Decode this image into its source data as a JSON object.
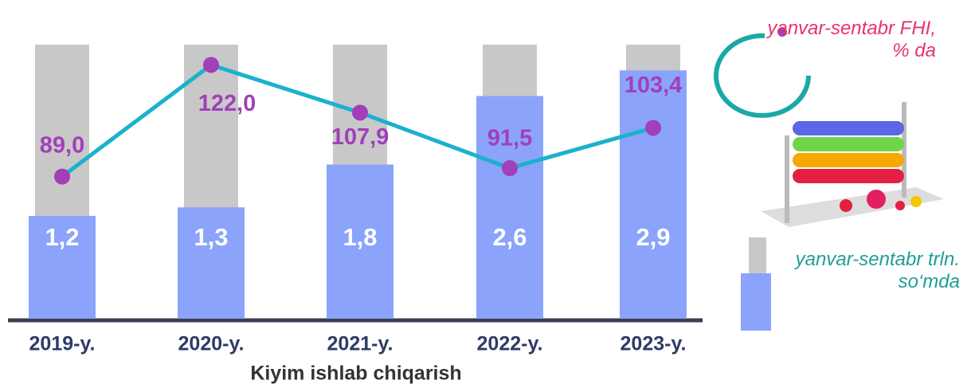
{
  "chart_data": {
    "type": "bar",
    "title": "Kiyim ishlab chiqarish",
    "categories": [
      "2019-y.",
      "2020-y.",
      "2021-y.",
      "2022-y.",
      "2023-y."
    ],
    "series": [
      {
        "name": "yanvar-sentabr trln. so‘mda",
        "type": "bar",
        "color": "#8ba3fb",
        "values": [
          1.2,
          1.3,
          1.8,
          2.6,
          2.9
        ],
        "value_labels": [
          "1,2",
          "1,3",
          "1,8",
          "2,6",
          "2,9"
        ]
      },
      {
        "name": "yanvar-sentabr FHI, % da",
        "type": "line",
        "axis": "y2",
        "color": "#1ab2cc",
        "marker_color": "#a23fb9",
        "values": [
          89.0,
          122.0,
          107.9,
          91.5,
          103.4
        ],
        "value_labels": [
          "89,0",
          "122,0",
          "107,9",
          "91,5",
          "103,4"
        ]
      }
    ],
    "ylim": [
      0,
      3.2
    ],
    "y2lim": [
      47,
      128
    ]
  }
}
